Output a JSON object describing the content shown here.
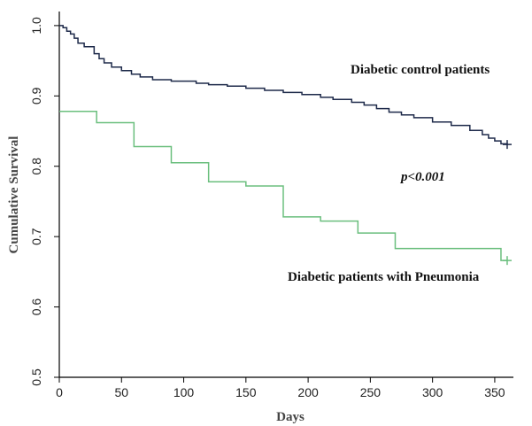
{
  "chart_data": {
    "type": "line",
    "title": "",
    "xlabel": "Days",
    "ylabel": "Cumulative Survival",
    "xlim": [
      0,
      365
    ],
    "ylim": [
      0.5,
      1.02
    ],
    "xticks": [
      "0",
      "50",
      "100",
      "150",
      "200",
      "250",
      "300",
      "350"
    ],
    "yticks": [
      "0.5",
      "0.6",
      "0.7",
      "0.8",
      "0.9",
      "1.0"
    ],
    "grid": false,
    "annotation": "p<0.001",
    "series": [
      {
        "name": "Diabetic control patients",
        "color": "#1e2a4a",
        "step": true,
        "censor_at_end": true,
        "x": [
          0,
          3,
          6,
          9,
          12,
          15,
          20,
          28,
          32,
          36,
          42,
          50,
          58,
          65,
          75,
          90,
          100,
          110,
          120,
          135,
          150,
          165,
          180,
          195,
          210,
          220,
          235,
          245,
          255,
          265,
          275,
          285,
          300,
          315,
          330,
          340,
          345,
          350,
          355,
          360
        ],
        "y": [
          1.0,
          0.997,
          0.992,
          0.988,
          0.982,
          0.975,
          0.97,
          0.96,
          0.953,
          0.947,
          0.941,
          0.936,
          0.931,
          0.927,
          0.923,
          0.921,
          0.921,
          0.918,
          0.916,
          0.914,
          0.911,
          0.908,
          0.905,
          0.902,
          0.898,
          0.895,
          0.891,
          0.887,
          0.882,
          0.877,
          0.873,
          0.869,
          0.863,
          0.858,
          0.851,
          0.845,
          0.84,
          0.836,
          0.832,
          0.831
        ]
      },
      {
        "name": "Diabetic patients with Pneumonia",
        "color": "#6bbf7e",
        "step": true,
        "censor_at_end": true,
        "x": [
          0,
          30,
          60,
          90,
          120,
          150,
          180,
          210,
          240,
          270,
          355,
          360
        ],
        "y": [
          0.878,
          0.862,
          0.828,
          0.805,
          0.778,
          0.772,
          0.728,
          0.722,
          0.705,
          0.683,
          0.666,
          0.666
        ]
      }
    ]
  }
}
